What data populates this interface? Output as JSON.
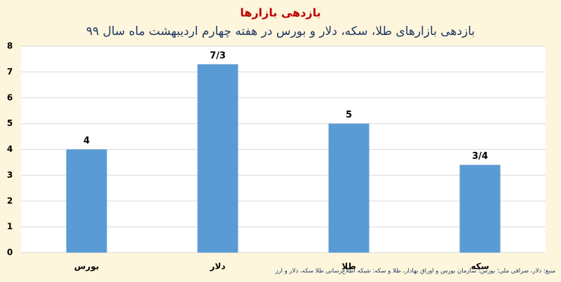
{
  "chart_data": {
    "type": "bar",
    "title": "بازدهی بازارها",
    "subtitle": "بازدهی بازارهای طلا، سکه، دلار و بورس در هفته چهارم اردیبهشت ماه سال ۹۹",
    "categories": [
      "بورس",
      "دلار",
      "طلا",
      "سکه"
    ],
    "values": [
      4,
      7.3,
      5,
      3.4
    ],
    "value_labels": [
      "4",
      "7/3",
      "5",
      "3/4"
    ],
    "color": "#5b9bd5",
    "ylim": [
      0,
      8
    ],
    "yticks": [
      0,
      1,
      2,
      3,
      4,
      5,
      6,
      7,
      8
    ],
    "grid": true,
    "source": "منبع: دلار، صرافی ملی؛ بورس: سازمان بورس و اوراق بهادار، طلا و سکه: شبکه اطلاع‌رسانی طلا سکه، دلار و ارز"
  }
}
